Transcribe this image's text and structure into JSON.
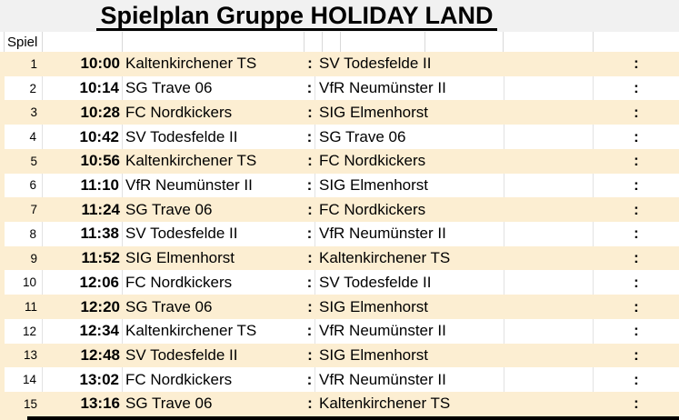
{
  "title": "Spielplan Gruppe HOLIDAY LAND",
  "header": {
    "spiel_label": "Spiel"
  },
  "separator": ":",
  "colors": {
    "row_stripe": "#fceed2",
    "title_band_bg": "#f1f1f1",
    "gridline": "#d9d9d9",
    "bottom_rule": "#000000"
  },
  "matches": [
    {
      "no": "1",
      "time": "10:00",
      "home": "Kaltenkirchener TS",
      "away": "SV Todesfelde II"
    },
    {
      "no": "2",
      "time": "10:14",
      "home": "SG Trave 06",
      "away": "VfR Neumünster II"
    },
    {
      "no": "3",
      "time": "10:28",
      "home": "FC Nordkickers",
      "away": "SIG Elmenhorst"
    },
    {
      "no": "4",
      "time": "10:42",
      "home": "SV Todesfelde II",
      "away": "SG Trave 06"
    },
    {
      "no": "5",
      "time": "10:56",
      "home": "Kaltenkirchener TS",
      "away": "FC Nordkickers"
    },
    {
      "no": "6",
      "time": "11:10",
      "home": "VfR Neumünster II",
      "away": "SIG Elmenhorst"
    },
    {
      "no": "7",
      "time": "11:24",
      "home": "SG Trave 06",
      "away": "FC Nordkickers"
    },
    {
      "no": "8",
      "time": "11:38",
      "home": "SV Todesfelde II",
      "away": "VfR Neumünster II"
    },
    {
      "no": "9",
      "time": "11:52",
      "home": "SIG Elmenhorst",
      "away": "Kaltenkirchener TS"
    },
    {
      "no": "10",
      "time": "12:06",
      "home": "FC Nordkickers",
      "away": "SV Todesfelde II"
    },
    {
      "no": "11",
      "time": "12:20",
      "home": "SG Trave 06",
      "away": "SIG Elmenhorst"
    },
    {
      "no": "12",
      "time": "12:34",
      "home": "Kaltenkirchener TS",
      "away": "VfR Neumünster II"
    },
    {
      "no": "13",
      "time": "12:48",
      "home": "SV Todesfelde II",
      "away": "SIG Elmenhorst"
    },
    {
      "no": "14",
      "time": "13:02",
      "home": "FC Nordkickers",
      "away": "VfR Neumünster II"
    },
    {
      "no": "15",
      "time": "13:16",
      "home": "SG Trave 06",
      "away": "Kaltenkirchener TS"
    }
  ]
}
